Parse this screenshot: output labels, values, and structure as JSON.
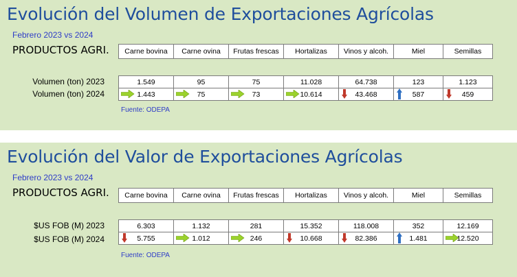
{
  "sections": [
    {
      "title": "Evolución del Volumen de Exportaciones Agrícolas",
      "subtitle": "Febrero 2023 vs 2024",
      "products_label": "PRODUCTOS AGRI.",
      "columns": [
        "Carne bovina",
        "Carne ovina",
        "Frutas frescas",
        "Hortalizas",
        "Vinos y alcoh.",
        "Miel",
        "Semillas"
      ],
      "row_labels": [
        "Volumen (ton) 2023",
        "Volumen (ton) 2024"
      ],
      "values_2023": [
        "1.549",
        "95",
        "75",
        "11.028",
        "64.738",
        "123",
        "1.123"
      ],
      "values_2024": [
        "1.443",
        "75",
        "73",
        "10.614",
        "43.468",
        "587",
        "459"
      ],
      "trends": [
        "right",
        "right",
        "right",
        "right",
        "down",
        "up",
        "down"
      ],
      "source": "Fuente: ODEPA"
    },
    {
      "title": "Evolución del Valor de Exportaciones Agrícolas",
      "subtitle": "Febrero 2023 vs 2024",
      "products_label": "PRODUCTOS AGRI.",
      "columns": [
        "Carne bovina",
        "Carne ovina",
        "Frutas frescas",
        "Hortalizas",
        "Vinos y alcoh.",
        "Miel",
        "Semillas"
      ],
      "row_labels": [
        "$US FOB (M) 2023",
        "$US FOB (M) 2024"
      ],
      "values_2023": [
        "6.303",
        "1.132",
        "281",
        "15.352",
        "118.008",
        "352",
        "12.169"
      ],
      "values_2024": [
        "5.755",
        "1.012",
        "246",
        "10.668",
        "82.386",
        "1.481",
        "12.520"
      ],
      "trends": [
        "down",
        "right",
        "right",
        "down",
        "down",
        "up",
        "right"
      ],
      "source": "Fuente: ODEPA"
    }
  ],
  "colors": {
    "panel_bg": "#d9e8c4",
    "title": "#1f4e9c",
    "subtitle": "#2e3cc7",
    "arrow_right": "#9bd22c",
    "arrow_down": "#c0392b",
    "arrow_up": "#2f6fc2"
  }
}
